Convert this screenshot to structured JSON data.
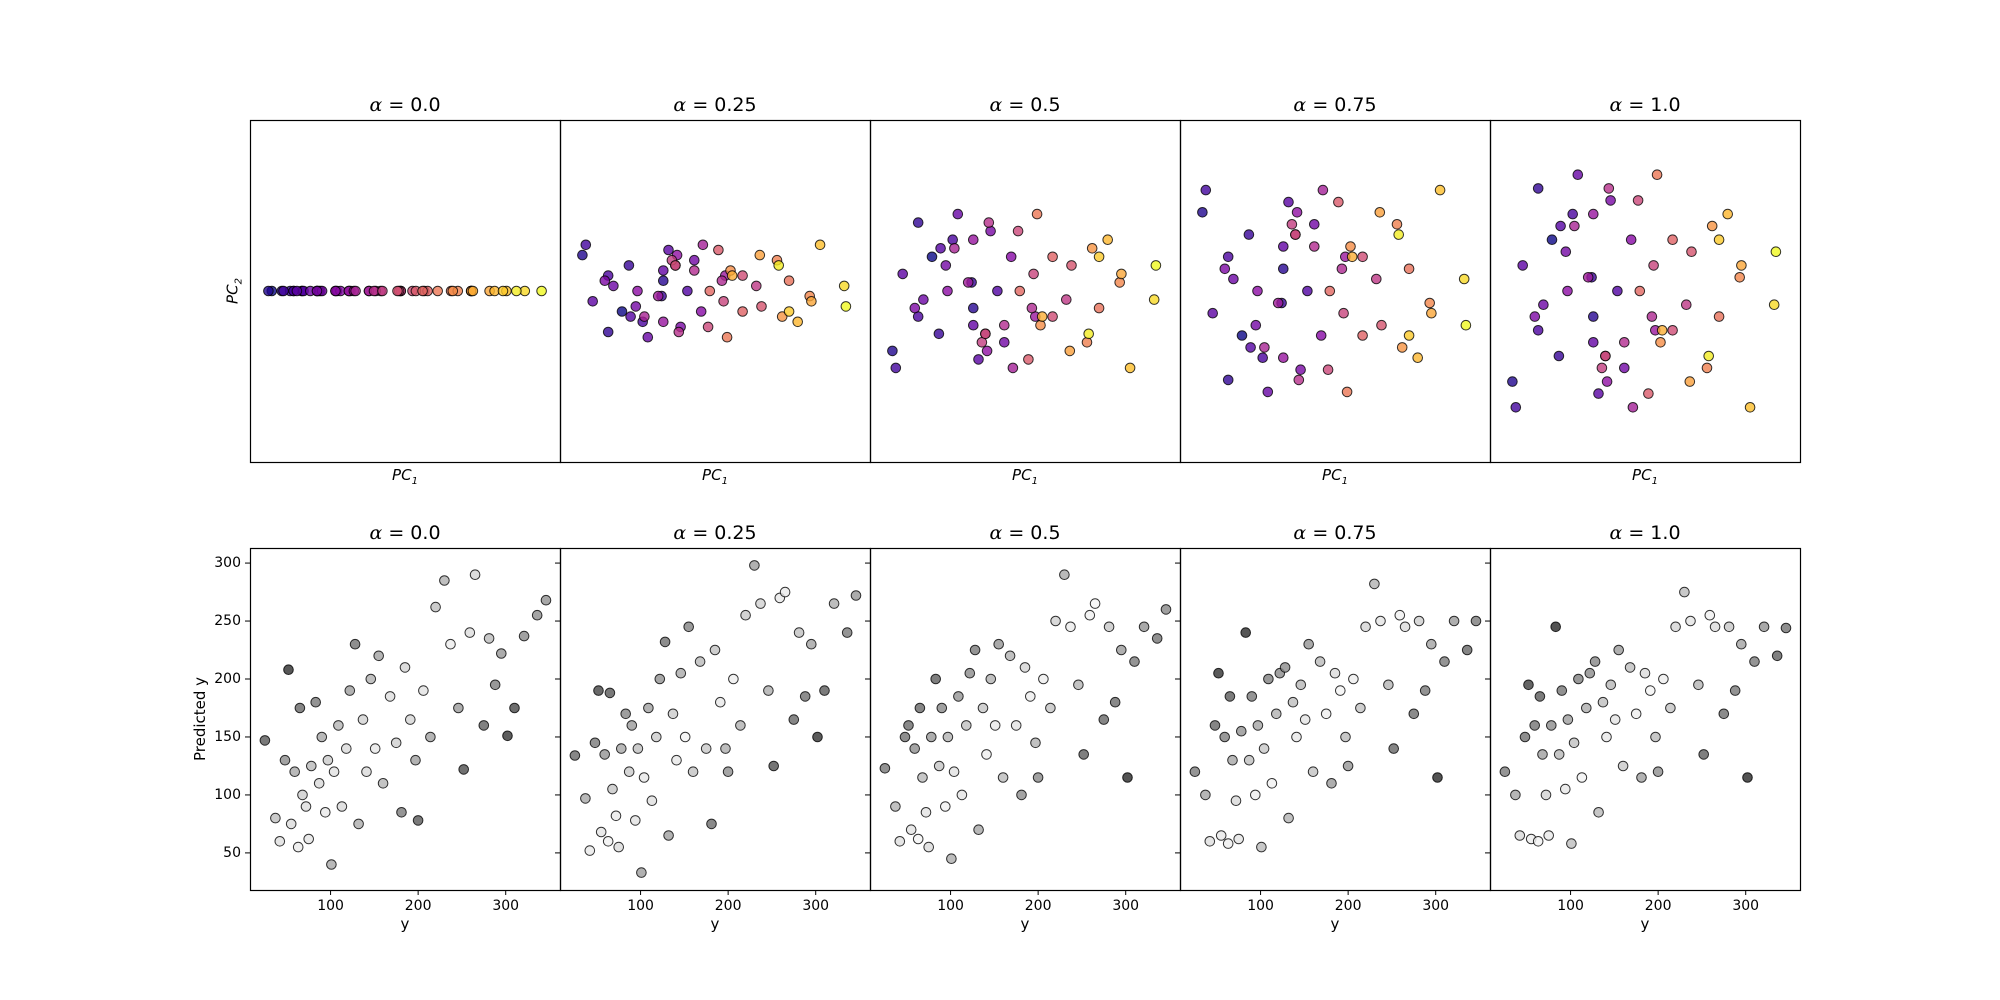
{
  "chart_data": {
    "type": "scatter",
    "colormaps": {
      "top": "plasma",
      "bottom": "gray"
    },
    "grid": false,
    "target_y": [
      25,
      37,
      42,
      48,
      52,
      55,
      59,
      63,
      65,
      68,
      72,
      75,
      78,
      83,
      87,
      90,
      94,
      97,
      101,
      104,
      109,
      113,
      118,
      122,
      128,
      132,
      137,
      141,
      146,
      151,
      155,
      160,
      168,
      175,
      181,
      185,
      191,
      197,
      200,
      206,
      214,
      220,
      230,
      237,
      246,
      252,
      259,
      265,
      275,
      281,
      288,
      295,
      302,
      310,
      321,
      336,
      346
    ],
    "panels": [
      {
        "row": "top",
        "alpha_label": "α",
        "title_value": "= 0.0",
        "xlabel": {
          "base": "PC",
          "sub": "1"
        },
        "ylabel": {
          "base": "PC",
          "sub": "2"
        },
        "xlim": [
          -0.9,
          0.95
        ],
        "ylim": [
          -1,
          1
        ],
        "x": [
          -0.77,
          -0.79,
          -0.64,
          -0.71,
          -0.66,
          -0.59,
          -0.7,
          -0.59,
          -0.64,
          -0.5,
          -0.58,
          -0.5,
          -0.62,
          -0.48,
          -0.49,
          -0.54,
          -0.39,
          -0.47,
          -0.38,
          -0.5,
          -0.36,
          -0.3,
          -0.39,
          -0.31,
          -0.31,
          -0.19,
          -0.28,
          -0.19,
          -0.27,
          -0.12,
          -0.15,
          -0.16,
          0.0,
          -0.11,
          0.0,
          -0.01,
          0.07,
          -0.02,
          0.14,
          0.09,
          0.16,
          0.13,
          0.3,
          0.22,
          0.34,
          0.42,
          0.31,
          0.42,
          0.42,
          0.53,
          0.43,
          0.56,
          0.63,
          0.61,
          0.74,
          0.69,
          0.84
        ],
        "y": [
          0,
          0,
          0,
          0,
          0,
          0,
          0,
          0,
          0,
          0,
          0,
          0,
          0,
          0,
          0,
          0,
          0,
          0,
          0,
          0,
          0,
          0,
          0,
          0,
          0,
          0,
          0,
          0,
          0,
          0,
          0,
          0,
          0,
          0,
          0,
          0,
          0,
          0,
          0,
          0,
          0,
          0,
          0,
          0,
          0,
          0,
          0,
          0,
          0,
          0,
          0,
          0,
          0,
          0,
          0,
          0,
          0
        ]
      },
      {
        "row": "top",
        "alpha_label": "α",
        "title_value": "= 0.25",
        "xlabel": {
          "base": "PC",
          "sub": "1"
        },
        "xlim": [
          -0.9,
          0.9
        ],
        "ylim": [
          -1,
          1
        ],
        "x": [
          -0.54,
          -0.77,
          -0.3,
          -0.62,
          -0.5,
          -0.31,
          -0.75,
          -0.42,
          -0.62,
          -0.16,
          -0.49,
          -0.27,
          -0.71,
          -0.3,
          -0.39,
          -0.59,
          -0.12,
          -0.46,
          -0.2,
          -0.64,
          -0.23,
          -0.08,
          -0.45,
          -0.22,
          -0.3,
          0.06,
          -0.33,
          -0.07,
          -0.41,
          0.04,
          -0.12,
          -0.21,
          0.24,
          -0.25,
          0.05,
          -0.04,
          0.16,
          -0.23,
          0.27,
          0.02,
          0.16,
          -0.03,
          0.43,
          0.07,
          0.36,
          0.55,
          0.09,
          0.39,
          0.26,
          0.56,
          0.1,
          0.48,
          0.61,
          0.43,
          0.75,
          0.37,
          0.76
        ],
        "y": [
          -0.12,
          0.21,
          0.06,
          -0.24,
          0.15,
          -0.03,
          0.27,
          -0.18,
          0.09,
          0,
          -0.15,
          0.24,
          -0.06,
          0.12,
          -0.27,
          0.03,
          0.18,
          -0.09,
          -0.21,
          0.06,
          0.15,
          -0.12,
          0,
          0.21,
          -0.18,
          0.09,
          -0.03,
          0.27,
          -0.15,
          0.06,
          0.12,
          -0.24,
          0.03,
          0.18,
          -0.06,
          -0.21,
          0.09,
          0.15,
          -0.09,
          0.24,
          -0.12,
          0,
          0.06,
          -0.27,
          0.18,
          -0.03,
          0.12,
          -0.15,
          0.21,
          -0.06,
          0.09,
          -0.18,
          0.27,
          -0.12,
          0.03,
          0.15,
          -0.09
        ]
      },
      {
        "row": "top",
        "alpha_label": "α",
        "title_value": "= 0.5",
        "xlabel": {
          "base": "PC",
          "sub": "1"
        },
        "xlim": [
          -0.9,
          0.9
        ],
        "ylim": [
          -1,
          1
        ],
        "x": [
          -0.54,
          -0.77,
          -0.3,
          -0.62,
          -0.5,
          -0.31,
          -0.75,
          -0.42,
          -0.62,
          -0.16,
          -0.49,
          -0.27,
          -0.71,
          -0.3,
          -0.39,
          -0.59,
          -0.12,
          -0.46,
          -0.2,
          -0.64,
          -0.23,
          -0.08,
          -0.45,
          -0.22,
          -0.3,
          0.06,
          -0.33,
          -0.07,
          -0.41,
          0.04,
          -0.12,
          -0.21,
          0.24,
          -0.25,
          0.05,
          -0.04,
          0.16,
          -0.23,
          0.27,
          0.02,
          0.16,
          -0.03,
          0.43,
          0.07,
          0.36,
          0.55,
          0.09,
          0.39,
          0.26,
          0.56,
          0.1,
          0.48,
          0.61,
          0.43,
          0.75,
          0.37,
          0.76
        ],
        "y": [
          0.2,
          -0.35,
          -0.1,
          0.4,
          -0.25,
          0.05,
          -0.45,
          0.3,
          -0.15,
          0,
          0.25,
          -0.4,
          0.1,
          -0.2,
          0.45,
          -0.05,
          -0.3,
          0.15,
          0.35,
          -0.1,
          -0.25,
          0.2,
          0,
          -0.35,
          0.3,
          -0.15,
          0.05,
          -0.45,
          0.25,
          -0.1,
          -0.2,
          0.4,
          -0.05,
          -0.3,
          0.1,
          0.35,
          -0.15,
          -0.25,
          0.15,
          -0.4,
          0.2,
          0,
          -0.1,
          0.45,
          -0.3,
          0.05,
          -0.2,
          0.25,
          -0.35,
          0.1,
          -0.15,
          0.3,
          -0.45,
          0.2,
          -0.05,
          -0.25,
          0.15
        ]
      },
      {
        "row": "top",
        "alpha_label": "α",
        "title_value": "= 0.75",
        "xlabel": {
          "base": "PC",
          "sub": "1"
        },
        "xlim": [
          -0.9,
          0.9
        ],
        "ylim": [
          -1,
          1
        ],
        "x": [
          -0.54,
          -0.77,
          -0.3,
          -0.62,
          -0.5,
          -0.31,
          -0.75,
          -0.42,
          -0.62,
          -0.16,
          -0.49,
          -0.27,
          -0.71,
          -0.3,
          -0.39,
          -0.59,
          -0.12,
          -0.46,
          -0.2,
          -0.64,
          -0.23,
          -0.08,
          -0.45,
          -0.22,
          -0.3,
          0.06,
          -0.33,
          -0.07,
          -0.41,
          0.04,
          -0.12,
          -0.21,
          0.24,
          -0.25,
          0.05,
          -0.04,
          0.16,
          -0.23,
          0.27,
          0.02,
          0.16,
          -0.03,
          0.43,
          0.07,
          0.36,
          0.55,
          0.09,
          0.39,
          0.26,
          0.56,
          0.1,
          0.48,
          0.61,
          0.43,
          0.75,
          0.37,
          0.76
        ],
        "y": [
          -0.26,
          0.46,
          0.13,
          -0.52,
          0.33,
          -0.07,
          0.59,
          -0.39,
          0.2,
          0,
          -0.33,
          0.52,
          -0.13,
          0.26,
          -0.59,
          0.07,
          0.39,
          -0.2,
          -0.46,
          0.13,
          0.33,
          -0.26,
          0,
          0.46,
          -0.39,
          0.2,
          -0.07,
          0.59,
          -0.33,
          0.13,
          0.26,
          -0.52,
          0.07,
          0.39,
          -0.13,
          -0.46,
          0.2,
          0.33,
          -0.2,
          0.52,
          -0.26,
          0,
          0.13,
          -0.59,
          0.39,
          -0.07,
          0.26,
          -0.33,
          0.46,
          -0.13,
          0.2,
          -0.39,
          0.59,
          -0.26,
          0.07,
          0.33,
          -0.2
        ]
      },
      {
        "row": "top",
        "alpha_label": "α",
        "title_value": "= 1.0",
        "xlabel": {
          "base": "PC",
          "sub": "1"
        },
        "xlim": [
          -0.9,
          0.9
        ],
        "ylim": [
          -1,
          1
        ],
        "x": [
          -0.54,
          -0.77,
          -0.3,
          -0.62,
          -0.5,
          -0.31,
          -0.75,
          -0.42,
          -0.62,
          -0.16,
          -0.49,
          -0.27,
          -0.71,
          -0.3,
          -0.39,
          -0.59,
          -0.12,
          -0.46,
          -0.2,
          -0.64,
          -0.23,
          -0.08,
          -0.45,
          -0.22,
          -0.3,
          0.06,
          -0.33,
          -0.07,
          -0.41,
          0.04,
          -0.12,
          -0.21,
          0.24,
          -0.25,
          0.05,
          -0.04,
          0.16,
          -0.23,
          0.27,
          0.02,
          0.16,
          -0.03,
          0.43,
          0.07,
          0.36,
          0.55,
          0.09,
          0.39,
          0.26,
          0.56,
          0.1,
          0.48,
          0.61,
          0.43,
          0.75,
          0.37,
          0.76
        ],
        "y": [
          0.3,
          -0.53,
          -0.15,
          0.6,
          -0.38,
          0.08,
          -0.68,
          0.45,
          -0.23,
          0,
          0.38,
          -0.6,
          0.15,
          -0.3,
          0.68,
          -0.08,
          -0.45,
          0.23,
          0.53,
          -0.15,
          -0.38,
          0.3,
          0,
          -0.53,
          0.45,
          -0.23,
          0.08,
          -0.68,
          0.38,
          -0.15,
          -0.3,
          0.6,
          -0.08,
          -0.45,
          0.15,
          0.53,
          -0.23,
          -0.38,
          0.23,
          -0.6,
          0.3,
          0,
          -0.15,
          0.68,
          -0.45,
          0.08,
          -0.3,
          0.38,
          -0.53,
          0.15,
          -0.23,
          0.45,
          -0.68,
          0.3,
          -0.08,
          -0.38,
          0.23
        ]
      },
      {
        "row": "bottom",
        "alpha_label": "α",
        "title_value": "= 0.0",
        "xlabel": "y",
        "ylabel": "Predicted y",
        "xlim": [
          8,
          362
        ],
        "ylim": [
          18,
          313
        ],
        "xticks": [
          100,
          200,
          300
        ],
        "yticks": [
          50,
          100,
          150,
          200,
          250,
          300
        ],
        "y": [
          147,
          80,
          60,
          130,
          208,
          75,
          120,
          55,
          175,
          100,
          90,
          62,
          125,
          180,
          110,
          150,
          85,
          130,
          40,
          120,
          160,
          90,
          140,
          190,
          230,
          75,
          165,
          120,
          200,
          140,
          220,
          110,
          185,
          145,
          85,
          210,
          165,
          130,
          78,
          190,
          150,
          262,
          285,
          230,
          175,
          122,
          240,
          290,
          160,
          235,
          195,
          222,
          151,
          175,
          237,
          255,
          268
        ]
      },
      {
        "row": "bottom",
        "alpha_label": "α",
        "title_value": "= 0.25",
        "xlabel": "y",
        "xlim": [
          8,
          362
        ],
        "ylim": [
          18,
          313
        ],
        "xticks": [
          100,
          200,
          300
        ],
        "y": [
          134,
          97,
          52,
          145,
          190,
          68,
          135,
          60,
          188,
          105,
          82,
          55,
          140,
          170,
          120,
          160,
          78,
          140,
          33,
          115,
          175,
          95,
          150,
          200,
          232,
          65,
          170,
          130,
          205,
          150,
          245,
          120,
          215,
          140,
          75,
          225,
          180,
          140,
          120,
          200,
          160,
          255,
          298,
          265,
          190,
          125,
          270,
          275,
          165,
          240,
          185,
          230,
          150,
          190,
          265,
          240,
          272
        ]
      },
      {
        "row": "bottom",
        "alpha_label": "α",
        "title_value": "= 0.5",
        "xlabel": "y",
        "xlim": [
          8,
          362
        ],
        "ylim": [
          18,
          313
        ],
        "xticks": [
          100,
          200,
          300
        ],
        "y": [
          123,
          90,
          60,
          150,
          160,
          70,
          140,
          62,
          175,
          115,
          85,
          55,
          150,
          200,
          125,
          175,
          90,
          150,
          45,
          120,
          185,
          100,
          160,
          205,
          225,
          70,
          175,
          135,
          200,
          160,
          230,
          115,
          220,
          160,
          100,
          210,
          185,
          145,
          115,
          200,
          175,
          250,
          290,
          245,
          195,
          135,
          255,
          265,
          165,
          245,
          180,
          225,
          115,
          215,
          245,
          235,
          260
        ]
      },
      {
        "row": "bottom",
        "alpha_label": "α",
        "title_value": "= 0.75",
        "xlabel": "y",
        "xlim": [
          8,
          362
        ],
        "ylim": [
          18,
          313
        ],
        "xticks": [
          100,
          200,
          300
        ],
        "y": [
          120,
          100,
          60,
          160,
          205,
          65,
          150,
          58,
          185,
          130,
          95,
          62,
          155,
          240,
          130,
          185,
          100,
          160,
          55,
          140,
          200,
          110,
          170,
          205,
          210,
          80,
          180,
          150,
          195,
          165,
          230,
          120,
          215,
          170,
          110,
          205,
          190,
          150,
          125,
          200,
          175,
          245,
          282,
          250,
          195,
          140,
          255,
          245,
          170,
          250,
          190,
          230,
          115,
          215,
          250,
          225,
          250
        ]
      },
      {
        "row": "bottom",
        "alpha_label": "α",
        "title_value": "= 1.0",
        "xlabel": "y",
        "xlim": [
          8,
          362
        ],
        "ylim": [
          18,
          313
        ],
        "xticks": [
          100,
          200,
          300
        ],
        "y": [
          120,
          100,
          65,
          150,
          195,
          62,
          160,
          60,
          185,
          135,
          100,
          65,
          160,
          245,
          135,
          190,
          105,
          165,
          58,
          145,
          200,
          115,
          175,
          205,
          215,
          85,
          180,
          150,
          195,
          165,
          225,
          125,
          210,
          170,
          115,
          205,
          190,
          150,
          120,
          200,
          175,
          245,
          275,
          250,
          195,
          135,
          255,
          245,
          170,
          245,
          190,
          230,
          115,
          215,
          245,
          220,
          244
        ]
      }
    ]
  }
}
